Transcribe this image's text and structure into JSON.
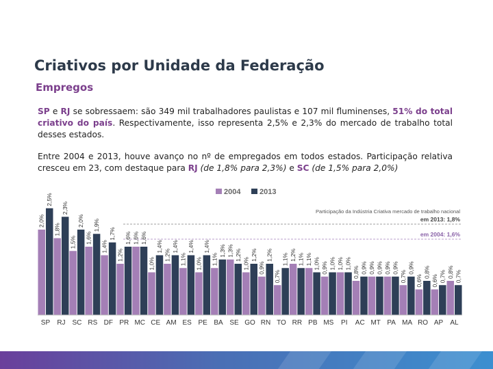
{
  "header": {
    "title": "Criativos por Unidade da Federação",
    "subtitle": "Empregos"
  },
  "paragraph1": {
    "sp": "SP",
    "e": " e ",
    "rj": "RJ",
    "rest1": " se sobressaem: são 349 mil trabalhadores paulistas e 107 mil fluminenses, ",
    "highlight": "51% do total criativo do país",
    "rest2": ". Respectivamente, isso representa 2,5% e 2,3% do mercado de trabalho total desses estados."
  },
  "paragraph2": {
    "text1": "Entre 2004 e 2013, houve avanço no nº de empregados em todos estados. Participação relativa cresceu em 23, com destaque para ",
    "rj": "RJ",
    "rj_detail": " (de 1,8% para 2,3%)",
    "e": " e ",
    "sc": "SC",
    "sc_detail": " (de 1,5% para 2,0%)"
  },
  "colors": {
    "series2004": "#a47fb6",
    "series2013": "#2e3f57",
    "line2013": "#9e9e9e",
    "line2004": "#b89ccb"
  },
  "chart_data": {
    "type": "bar",
    "title": "",
    "xlabel": "",
    "ylabel": "",
    "ylim": [
      0,
      2.8
    ],
    "categories": [
      "SP",
      "RJ",
      "SC",
      "RS",
      "DF",
      "PR",
      "MC",
      "CE",
      "AM",
      "ES",
      "PE",
      "BA",
      "SE",
      "GO",
      "RN",
      "TO",
      "RR",
      "PB",
      "MS",
      "PI",
      "AC",
      "MT",
      "PA",
      "MA",
      "RO",
      "AP",
      "AL"
    ],
    "series": [
      {
        "name": "2004",
        "values": [
          2.0,
          1.8,
          1.5,
          1.6,
          1.4,
          1.2,
          1.6,
          1.0,
          1.2,
          1.1,
          1.0,
          1.1,
          1.3,
          1.0,
          0.9,
          0.7,
          1.2,
          1.1,
          0.9,
          1.0,
          0.8,
          0.9,
          0.9,
          0.7,
          0.6,
          0.6,
          0.8
        ]
      },
      {
        "name": "2013",
        "values": [
          2.5,
          2.3,
          2.0,
          1.9,
          1.7,
          1.6,
          1.6,
          1.4,
          1.4,
          1.4,
          1.4,
          1.3,
          1.2,
          1.2,
          1.2,
          1.1,
          1.1,
          1.0,
          1.0,
          1.0,
          0.9,
          0.9,
          0.9,
          0.9,
          0.8,
          0.7,
          0.7
        ]
      }
    ],
    "data_labels_2004": [
      "2,0%",
      "1,8%",
      "1,5%",
      "1,6%",
      "1,4%",
      "1,2%",
      "1,6%",
      "1,0%",
      "1,2%",
      "1,1%",
      "1,0%",
      "1,1%",
      "1,3%",
      "1,0%",
      "0,9%",
      "0,7%",
      "1,2%",
      "1,1%",
      "0,9%",
      "1,0%",
      "0,8%",
      "0,9%",
      "0,9%",
      "0,7%",
      "0,6%",
      "0,6%",
      "0,8%"
    ],
    "data_labels_2013": [
      "2,5%",
      "2,3%",
      "2,0%",
      "1,9%",
      "1,7%",
      "1,6%",
      "1,6%",
      "1,4%",
      "1,4%",
      "1,4%",
      "1,4%",
      "1,3%",
      "1,2%",
      "1,2%",
      "1,2%",
      "1,1%",
      "1,1%",
      "1,0%",
      "1,0%",
      "1,0%",
      "0,9%",
      "0,9%",
      "0,9%",
      "0,9%",
      "0,8%",
      "0,7%",
      "0,7%"
    ],
    "legend": [
      "2004",
      "2013"
    ],
    "legend_position": "top-center",
    "annotation_title": "Participação da Indústria Criativa mercado de trabalho nacional",
    "reference_lines": [
      {
        "label": "em 2013: 1,8%",
        "value": 1.8
      },
      {
        "label": "em 2004: 1,6%",
        "value": 1.6
      }
    ]
  }
}
